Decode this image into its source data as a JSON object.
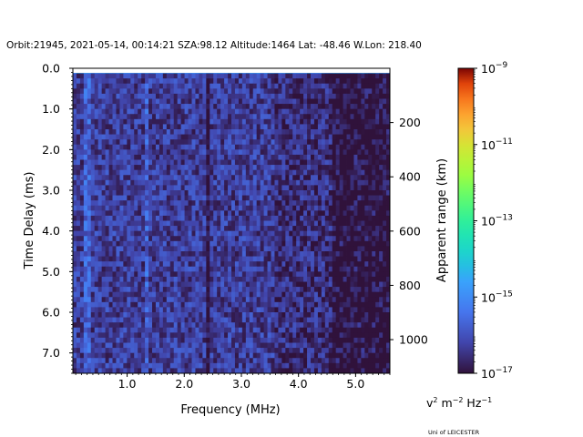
{
  "title": "Orbit:21945, 2021-05-14, 00:14:21 SZA:98.12 Altitude:1464 Lat: -48.46 W.Lon: 218.40",
  "credit": "Uni of LEICESTER",
  "colorbar": {
    "units_base": "v",
    "units_rest": " m",
    "units_tail": " Hz",
    "sup1": "2",
    "sup2": "−2",
    "sup3": "−1",
    "label": "Apparent range (km)",
    "colormap": "turbo",
    "scale": "log",
    "ticks": [
      {
        "mantissa": "10",
        "exp": "−17",
        "value": -17
      },
      {
        "mantissa": "10",
        "exp": "−15",
        "value": -15
      },
      {
        "mantissa": "10",
        "exp": "−13",
        "value": -13
      },
      {
        "mantissa": "10",
        "exp": "−11",
        "value": -11
      },
      {
        "mantissa": "10",
        "exp": "−9",
        "value": -9
      }
    ]
  },
  "chart_data": {
    "type": "heatmap",
    "xlabel": "Frequency (MHz)",
    "ylabel": "Time Delay (ms)",
    "y2label": "Apparent range (km)",
    "xlim": [
      0.05,
      5.6
    ],
    "ylim": [
      7.5,
      0.0
    ],
    "xticks": [
      "1.0",
      "2.0",
      "3.0",
      "4.0",
      "5.0"
    ],
    "xtick_values": [
      1.0,
      2.0,
      3.0,
      4.0,
      5.0
    ],
    "yticks": [
      "0.0",
      "1.0",
      "2.0",
      "3.0",
      "4.0",
      "5.0",
      "6.0",
      "7.0"
    ],
    "ytick_values": [
      0.0,
      1.0,
      2.0,
      3.0,
      4.0,
      5.0,
      6.0,
      7.0
    ],
    "y2ticks": [
      "200",
      "400",
      "600",
      "800",
      "1000"
    ],
    "y2tick_values": [
      200,
      400,
      600,
      800,
      1000
    ],
    "y2lim": [
      1124,
      0
    ],
    "clim_log10": [
      -17,
      -9
    ],
    "features": {
      "noise_floor_log10": -16.3,
      "bright_first_row_log10": -14.8,
      "vertical_lines_mhz": [
        0.27,
        0.35,
        1.33,
        2.4
      ],
      "high_freq_dark_from_mhz": 4.6
    }
  }
}
